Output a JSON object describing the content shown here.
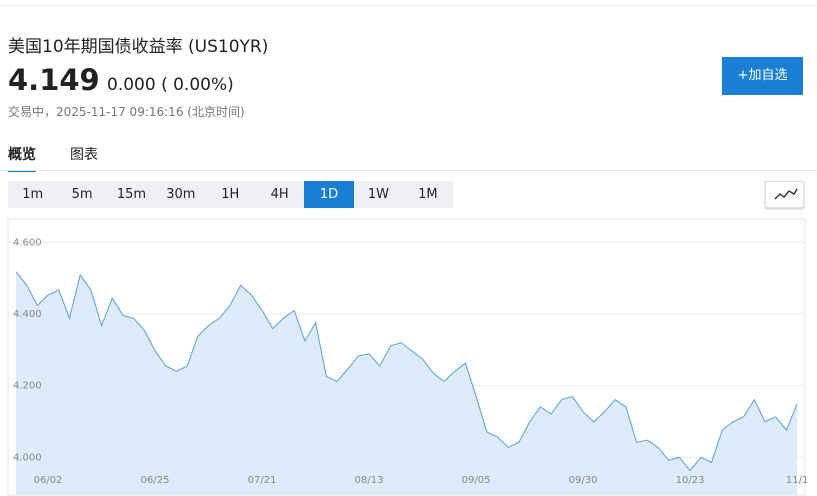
{
  "header": {
    "title": "美国10年期国债收益率 (US10YR)",
    "price": "4.149",
    "change": "0.000 ( 0.00%)",
    "status": "交易中，2025-11-17 09:16:16 (北京时间)",
    "button": "+加自选"
  },
  "tabs": [
    "概览",
    "图表"
  ],
  "ranges": [
    "1m",
    "5m",
    "15m",
    "30m",
    "1H",
    "4H",
    "1D",
    "1W",
    "1M"
  ],
  "active_range": "1D",
  "chart_data": {
    "type": "area",
    "color": "#5aa0dc",
    "fill": "#ddebfa",
    "categories": [
      null,
      null,
      null,
      "06/02",
      null,
      null,
      null,
      null,
      null,
      null,
      null,
      null,
      null,
      "06/25",
      null,
      null,
      null,
      null,
      null,
      null,
      null,
      null,
      null,
      "07/21",
      null,
      null,
      null,
      null,
      null,
      null,
      null,
      null,
      null,
      "08/13",
      null,
      null,
      null,
      null,
      null,
      null,
      null,
      null,
      null,
      "09/05",
      null,
      null,
      null,
      null,
      null,
      null,
      null,
      null,
      null,
      "09/30",
      null,
      null,
      null,
      null,
      null,
      null,
      null,
      null,
      null,
      "10/23",
      null,
      null,
      null,
      null,
      null,
      null,
      null,
      null,
      null,
      "11/1"
    ],
    "values": [
      4.518,
      4.48,
      4.424,
      4.453,
      4.467,
      4.388,
      4.509,
      4.467,
      4.368,
      4.444,
      4.396,
      4.388,
      4.354,
      4.297,
      4.255,
      4.24,
      4.255,
      4.339,
      4.368,
      4.388,
      4.424,
      4.48,
      4.453,
      4.41,
      4.359,
      4.388,
      4.41,
      4.325,
      4.376,
      4.226,
      4.212,
      4.246,
      4.283,
      4.289,
      4.255,
      4.311,
      4.32,
      4.297,
      4.274,
      4.235,
      4.212,
      4.24,
      4.263,
      4.17,
      4.071,
      4.057,
      4.028,
      4.042,
      4.099,
      4.141,
      4.121,
      4.161,
      4.17,
      4.127,
      4.099,
      4.127,
      4.161,
      4.141,
      4.042,
      4.048,
      4.028,
      3.992,
      4.0,
      3.963,
      4.0,
      3.986,
      4.076,
      4.099,
      4.113,
      4.161,
      4.099,
      4.113,
      4.076,
      4.149
    ],
    "ylim": [
      3.895,
      4.665
    ],
    "yticks": [
      {
        "value": 4.0,
        "label": "4.000"
      },
      {
        "value": 4.2,
        "label": "4.200"
      },
      {
        "value": 4.4,
        "label": "4.400"
      },
      {
        "value": 4.6,
        "label": "4.600"
      }
    ],
    "grid": true
  }
}
